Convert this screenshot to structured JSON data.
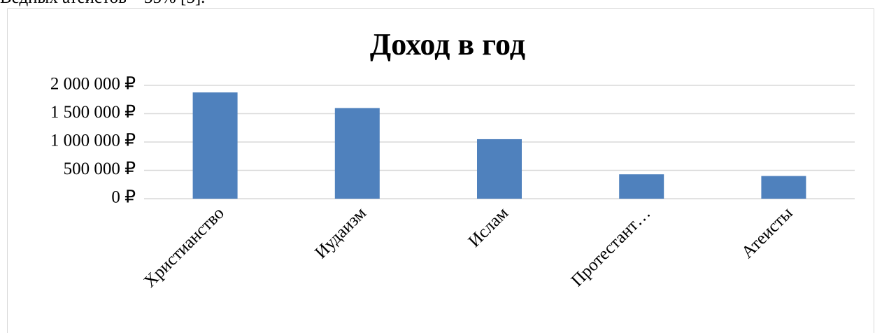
{
  "preceding_text": "Ведных атеистов – 35% [5].",
  "chart_data": {
    "type": "bar",
    "title": "Доход в год",
    "categories": [
      "Христианство",
      "Иудаизм",
      "Ислам",
      "Протестант…",
      "Атеисты"
    ],
    "values": [
      1875000,
      1600000,
      1050000,
      430000,
      400000
    ],
    "color": "#4f81bd",
    "ylim": [
      0,
      2000000
    ],
    "yticks": [
      {
        "value": 0,
        "label": "0 ₽"
      },
      {
        "value": 500000,
        "label": "500 000 ₽"
      },
      {
        "value": 1000000,
        "label": "1 000 000 ₽"
      },
      {
        "value": 1500000,
        "label": "1 500 000 ₽"
      },
      {
        "value": 2000000,
        "label": "2 000 000 ₽"
      }
    ],
    "grid": true
  }
}
